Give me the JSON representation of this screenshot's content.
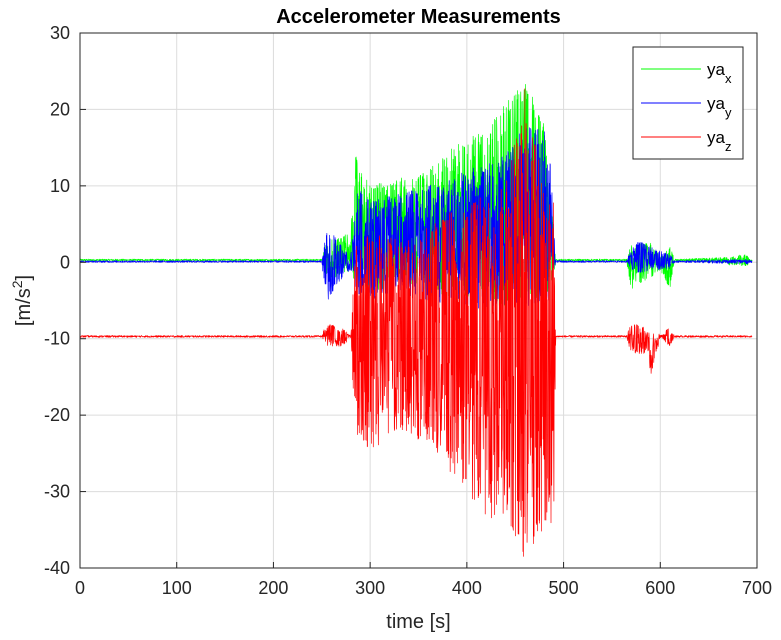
{
  "chart_data": {
    "type": "line",
    "title": "Accelerometer Measurements",
    "xlabel": "time [s]",
    "ylabel_main": "[m/s",
    "ylabel_sup": "2",
    "ylabel_end": "]",
    "xlim": [
      0,
      700
    ],
    "ylim": [
      -40,
      30
    ],
    "xticks": [
      0,
      100,
      200,
      300,
      400,
      500,
      600,
      700
    ],
    "yticks": [
      30,
      20,
      10,
      0,
      -10,
      -20,
      -30,
      -40
    ],
    "grid": true,
    "legend_position": "top-right",
    "series": [
      {
        "name": "ya",
        "subscript": "x",
        "color": "#00ff00",
        "baseline": 0.3,
        "envelope": [
          {
            "x": 0,
            "lo": 0.1,
            "hi": 0.5
          },
          {
            "x": 250,
            "lo": 0.1,
            "hi": 0.5
          },
          {
            "x": 255,
            "lo": -2.0,
            "hi": 3.0
          },
          {
            "x": 265,
            "lo": -2.0,
            "hi": 3.0
          },
          {
            "x": 280,
            "lo": -1.0,
            "hi": 4.0
          },
          {
            "x": 285,
            "lo": -3.0,
            "hi": 14.0
          },
          {
            "x": 300,
            "lo": -4.0,
            "hi": 10.0
          },
          {
            "x": 330,
            "lo": -3.0,
            "hi": 11.0
          },
          {
            "x": 360,
            "lo": -4.0,
            "hi": 12.0
          },
          {
            "x": 400,
            "lo": -5.0,
            "hi": 17.0
          },
          {
            "x": 420,
            "lo": -5.0,
            "hi": 17.0
          },
          {
            "x": 440,
            "lo": -6.0,
            "hi": 21.0
          },
          {
            "x": 460,
            "lo": -5.0,
            "hi": 24.0
          },
          {
            "x": 480,
            "lo": -5.0,
            "hi": 18.0
          },
          {
            "x": 490,
            "lo": -2.0,
            "hi": 4.0
          },
          {
            "x": 492,
            "lo": 0.1,
            "hi": 0.5
          },
          {
            "x": 565,
            "lo": 0.1,
            "hi": 0.5
          },
          {
            "x": 570,
            "lo": -3.5,
            "hi": 2.5
          },
          {
            "x": 590,
            "lo": -2.0,
            "hi": 2.5
          },
          {
            "x": 600,
            "lo": -1.0,
            "hi": 1.0
          },
          {
            "x": 610,
            "lo": -3.5,
            "hi": 2.0
          },
          {
            "x": 615,
            "lo": 0.1,
            "hi": 0.5
          },
          {
            "x": 690,
            "lo": -0.5,
            "hi": 1.0
          },
          {
            "x": 695,
            "lo": 0.1,
            "hi": 0.5
          }
        ]
      },
      {
        "name": "ya",
        "subscript": "y",
        "color": "#0000ff",
        "baseline": 0.1,
        "envelope": [
          {
            "x": 0,
            "lo": -0.1,
            "hi": 0.3
          },
          {
            "x": 250,
            "lo": -0.1,
            "hi": 0.3
          },
          {
            "x": 255,
            "lo": -5.5,
            "hi": 5.0
          },
          {
            "x": 265,
            "lo": -3.0,
            "hi": 3.0
          },
          {
            "x": 280,
            "lo": -1.0,
            "hi": 1.0
          },
          {
            "x": 285,
            "lo": -4.0,
            "hi": 10.0
          },
          {
            "x": 300,
            "lo": -5.0,
            "hi": 8.0
          },
          {
            "x": 330,
            "lo": -4.0,
            "hi": 9.0
          },
          {
            "x": 360,
            "lo": -5.0,
            "hi": 10.0
          },
          {
            "x": 400,
            "lo": -6.0,
            "hi": 12.0
          },
          {
            "x": 440,
            "lo": -6.0,
            "hi": 14.0
          },
          {
            "x": 460,
            "lo": -6.0,
            "hi": 18.0
          },
          {
            "x": 485,
            "lo": -5.0,
            "hi": 17.0
          },
          {
            "x": 490,
            "lo": -2.0,
            "hi": 4.0
          },
          {
            "x": 492,
            "lo": -0.1,
            "hi": 0.3
          },
          {
            "x": 565,
            "lo": -0.1,
            "hi": 0.3
          },
          {
            "x": 575,
            "lo": -1.5,
            "hi": 3.0
          },
          {
            "x": 590,
            "lo": -1.0,
            "hi": 2.0
          },
          {
            "x": 610,
            "lo": -1.0,
            "hi": 1.0
          },
          {
            "x": 615,
            "lo": -0.1,
            "hi": 0.3
          },
          {
            "x": 690,
            "lo": -0.5,
            "hi": 0.5
          },
          {
            "x": 695,
            "lo": -0.1,
            "hi": 0.3
          }
        ]
      },
      {
        "name": "ya",
        "subscript": "z",
        "color": "#ff0000",
        "baseline": -9.7,
        "envelope": [
          {
            "x": 0,
            "lo": -9.9,
            "hi": -9.5
          },
          {
            "x": 250,
            "lo": -9.9,
            "hi": -9.5
          },
          {
            "x": 255,
            "lo": -11.0,
            "hi": -8.0
          },
          {
            "x": 270,
            "lo": -11.0,
            "hi": -8.5
          },
          {
            "x": 280,
            "lo": -10.0,
            "hi": -9.5
          },
          {
            "x": 285,
            "lo": -24.0,
            "hi": 3.0
          },
          {
            "x": 300,
            "lo": -25.0,
            "hi": 4.0
          },
          {
            "x": 330,
            "lo": -22.0,
            "hi": 3.0
          },
          {
            "x": 360,
            "lo": -24.0,
            "hi": 5.0
          },
          {
            "x": 400,
            "lo": -30.0,
            "hi": 8.0
          },
          {
            "x": 420,
            "lo": -34.0,
            "hi": 9.0
          },
          {
            "x": 440,
            "lo": -33.0,
            "hi": 10.0
          },
          {
            "x": 460,
            "lo": -39.0,
            "hi": 23.0
          },
          {
            "x": 480,
            "lo": -35.0,
            "hi": 10.0
          },
          {
            "x": 490,
            "lo": -39.0,
            "hi": 9.0
          },
          {
            "x": 492,
            "lo": -9.9,
            "hi": -9.5
          },
          {
            "x": 565,
            "lo": -9.9,
            "hi": -9.5
          },
          {
            "x": 570,
            "lo": -12.0,
            "hi": -8.0
          },
          {
            "x": 585,
            "lo": -12.0,
            "hi": -8.5
          },
          {
            "x": 590,
            "lo": -15.0,
            "hi": -9.0
          },
          {
            "x": 600,
            "lo": -10.0,
            "hi": -9.5
          },
          {
            "x": 610,
            "lo": -11.0,
            "hi": -8.5
          },
          {
            "x": 615,
            "lo": -9.9,
            "hi": -9.5
          },
          {
            "x": 695,
            "lo": -9.9,
            "hi": -9.5
          }
        ]
      }
    ]
  }
}
